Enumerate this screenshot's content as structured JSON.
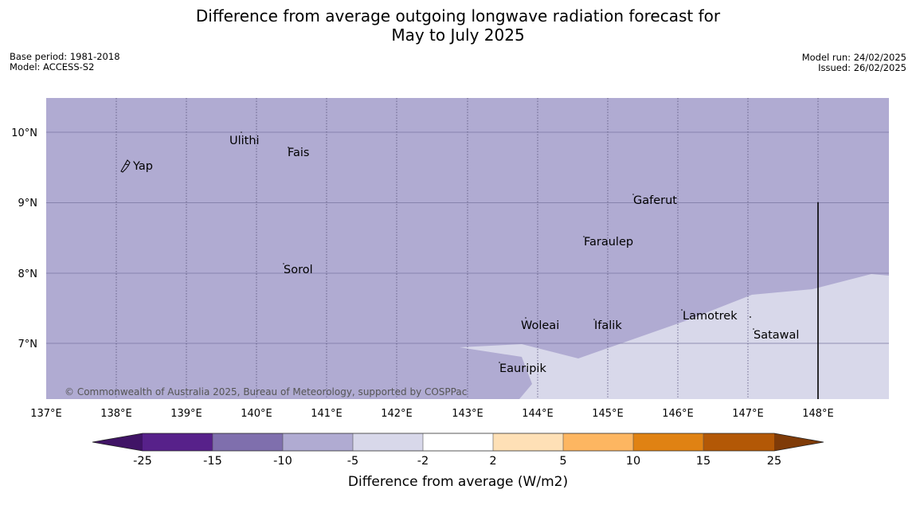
{
  "title_line1": "Difference from average outgoing longwave radiation forecast for",
  "title_line2": "May to July 2025",
  "meta_left": {
    "base_period": "Base period: 1981-2018",
    "model": "Model: ACCESS-S2"
  },
  "meta_right": {
    "model_run": "Model run: 24/02/2025",
    "issued": "Issued: 26/02/2025"
  },
  "map": {
    "lon_ticks": [
      "137°E",
      "138°E",
      "139°E",
      "140°E",
      "141°E",
      "142°E",
      "143°E",
      "144°E",
      "145°E",
      "146°E",
      "147°E",
      "148°E"
    ],
    "lat_ticks": [
      "10°N",
      "9°N",
      "8°N",
      "7°N"
    ],
    "places": [
      {
        "name": "Yap"
      },
      {
        "name": "Ulithi"
      },
      {
        "name": "Fais"
      },
      {
        "name": "Gaferut"
      },
      {
        "name": "Faraulep"
      },
      {
        "name": "Sorol"
      },
      {
        "name": "Lamotrek"
      },
      {
        "name": "Woleai"
      },
      {
        "name": "Ifalik"
      },
      {
        "name": "Satawal"
      },
      {
        "name": "Eauripik"
      }
    ],
    "copyright": "© Commonwealth of Australia 2025, Bureau of Meteorology, supported by COSPPac",
    "fill_colors": {
      "minus10_to_minus5": "#b0abd2",
      "minus5_to_minus2": "#d8d8ea"
    }
  },
  "colorbar": {
    "title": "Difference from average (W/m2)",
    "ticks": [
      "-25",
      "-15",
      "-10",
      "-5",
      "-2",
      "2",
      "5",
      "10",
      "15",
      "25"
    ],
    "colors": [
      "#401466",
      "#57218a",
      "#7f6fad",
      "#b0abd2",
      "#d8d8ea",
      "#ffffff",
      "#fee0b6",
      "#fdb661",
      "#e08213",
      "#b35806",
      "#7f3b08"
    ]
  }
}
